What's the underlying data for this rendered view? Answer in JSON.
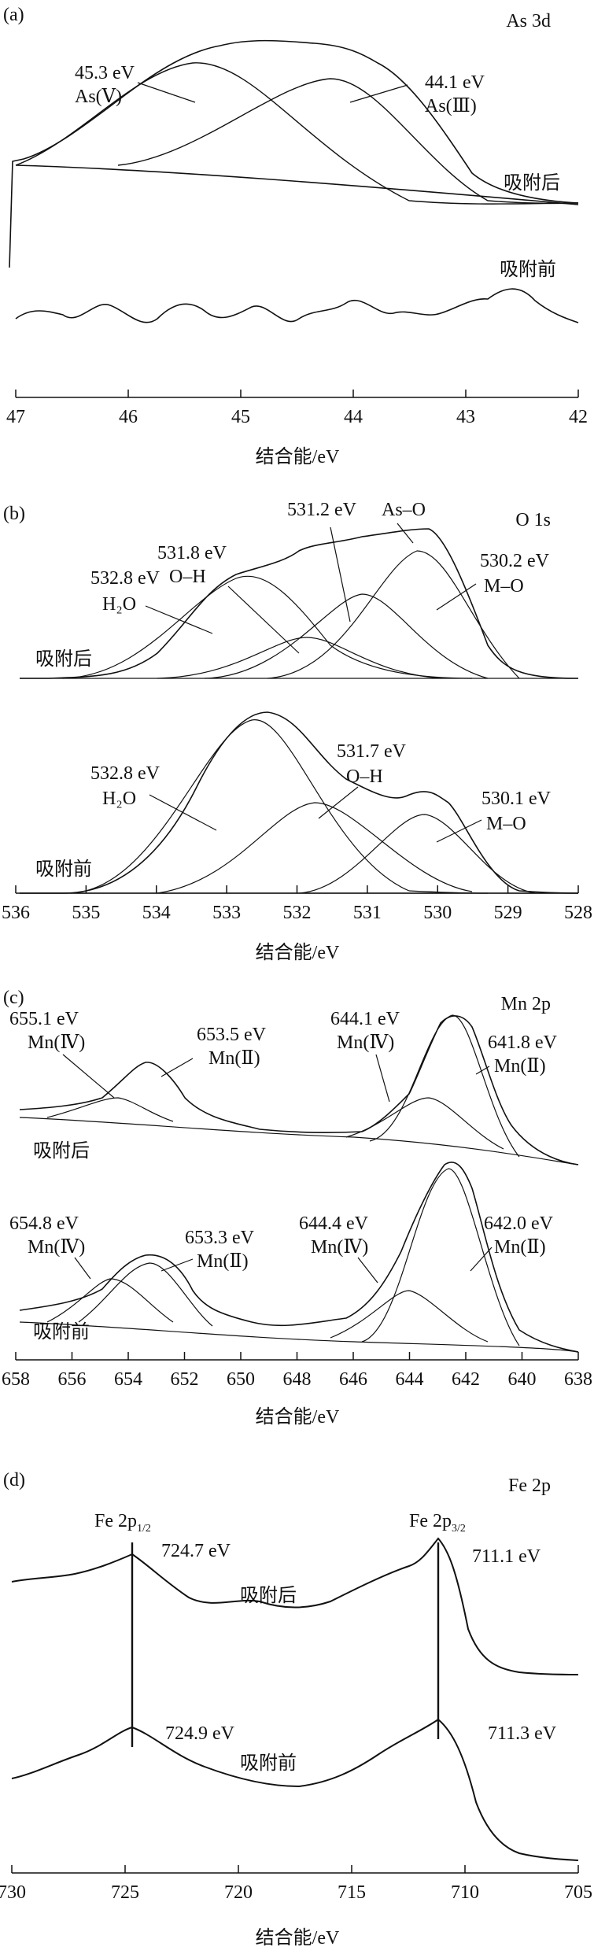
{
  "chart_data": [
    {
      "type": "line",
      "panel": "(a)",
      "title": "As 3d",
      "xlabel": "结合能/eV",
      "ylabel": "",
      "xlim": [
        47,
        42
      ],
      "xticks": [
        47,
        46,
        45,
        44,
        43,
        42
      ],
      "grid": false,
      "curve_labels": [
        "吸附后",
        "吸附前"
      ],
      "series": [
        {
          "name": "吸附后",
          "x": [
            47.0,
            46.8,
            46.6,
            46.4,
            46.2,
            46.0,
            45.8,
            45.6,
            45.4,
            45.2,
            45.0,
            44.8,
            44.6,
            44.4,
            44.2,
            44.0,
            43.8,
            43.6,
            43.4,
            43.2,
            43.0,
            42.8,
            42.6,
            42.4,
            42.2,
            42.0
          ],
          "values": [
            0.18,
            0.22,
            0.3,
            0.41,
            0.55,
            0.68,
            0.8,
            0.9,
            0.97,
            0.99,
            1.0,
            0.99,
            0.98,
            0.96,
            0.9,
            0.79,
            0.62,
            0.44,
            0.28,
            0.17,
            0.1,
            0.07,
            0.05,
            0.04,
            0.03,
            0.03
          ]
        },
        {
          "name": "As(Ⅴ) fit",
          "x": [
            47.0,
            46.6,
            46.2,
            45.8,
            45.5,
            45.3,
            45.1,
            44.8,
            44.4,
            44.0,
            43.6,
            43.2,
            42.8,
            42.4,
            42.0
          ],
          "values": [
            0.03,
            0.13,
            0.38,
            0.66,
            0.79,
            0.81,
            0.78,
            0.65,
            0.4,
            0.18,
            0.06,
            0.02,
            0.01,
            0.0,
            0.0
          ]
        },
        {
          "name": "As(Ⅲ) fit",
          "x": [
            46.4,
            46.0,
            45.6,
            45.2,
            44.8,
            44.4,
            44.1,
            43.8,
            43.4,
            43.0,
            42.6,
            42.2,
            42.0
          ],
          "values": [
            0.0,
            0.03,
            0.11,
            0.3,
            0.55,
            0.73,
            0.77,
            0.71,
            0.5,
            0.24,
            0.08,
            0.02,
            0.01
          ]
        },
        {
          "name": "吸附后 baseline",
          "x": [
            47.0,
            46.0,
            45.0,
            44.0,
            43.0,
            42.0
          ],
          "values": [
            0.12,
            0.11,
            0.09,
            0.06,
            0.03,
            0.02
          ]
        },
        {
          "name": "吸附前",
          "x": [
            47.0,
            46.6,
            46.2,
            45.8,
            45.4,
            45.0,
            44.6,
            44.2,
            43.8,
            43.4,
            43.0,
            42.6,
            42.2,
            42.0
          ],
          "values": [
            -0.45,
            -0.4,
            -0.5,
            -0.42,
            -0.47,
            -0.4,
            -0.44,
            -0.36,
            -0.43,
            -0.45,
            -0.41,
            -0.33,
            -0.4,
            -0.44
          ]
        }
      ],
      "annotations": [
        {
          "text": "45.3 eV",
          "text2": "As(Ⅴ)",
          "x": 45.3
        },
        {
          "text": "44.1 eV",
          "text2": "As(Ⅲ)",
          "x": 44.1
        }
      ]
    },
    {
      "type": "line",
      "panel": "(b)",
      "title": "O 1s",
      "xlabel": "结合能/eV",
      "ylabel": "",
      "xlim": [
        536,
        528
      ],
      "xticks": [
        536,
        535,
        534,
        533,
        532,
        531,
        530,
        529,
        528
      ],
      "grid": false,
      "curve_labels": [
        "吸附后",
        "吸附前"
      ],
      "series": [
        {
          "name": "吸附后",
          "x": [
            535.0,
            534.5,
            534.0,
            533.5,
            533.0,
            532.5,
            532.0,
            531.5,
            531.0,
            530.5,
            530.2,
            530.0,
            529.5,
            529.0,
            528.5,
            528.0
          ],
          "values": [
            0.02,
            0.08,
            0.22,
            0.42,
            0.58,
            0.64,
            0.67,
            0.7,
            0.73,
            0.77,
            0.75,
            0.66,
            0.35,
            0.1,
            0.02,
            0.01
          ]
        },
        {
          "name": "吸附前",
          "x": [
            535.0,
            534.5,
            534.0,
            533.5,
            533.0,
            532.8,
            532.5,
            532.0,
            531.5,
            531.0,
            530.5,
            530.2,
            530.0,
            529.5,
            529.0,
            528.5,
            528.0
          ],
          "values": [
            0.02,
            0.1,
            0.3,
            0.6,
            0.86,
            0.88,
            0.8,
            0.62,
            0.47,
            0.46,
            0.53,
            0.53,
            0.47,
            0.24,
            0.07,
            0.02,
            0.01
          ]
        }
      ],
      "annotations": [
        {
          "text": "531.8 eV",
          "text2": "O–H",
          "x": 531.8,
          "curve": "吸附后"
        },
        {
          "text": "531.2 eV",
          "text2": "As–O",
          "x": 531.2,
          "curve": "吸附后"
        },
        {
          "text": "532.8 eV",
          "text2": "H₂O",
          "x": 532.8,
          "curve": "吸附后"
        },
        {
          "text": "530.2 eV",
          "text2": "M–O",
          "x": 530.2,
          "curve": "吸附后"
        },
        {
          "text": "532.8 eV",
          "text2": "H₂O",
          "x": 532.8,
          "curve": "吸附前"
        },
        {
          "text": "531.7 eV",
          "text2": "O–H",
          "x": 531.7,
          "curve": "吸附前"
        },
        {
          "text": "530.1 eV",
          "text2": "M–O",
          "x": 530.1,
          "curve": "吸附前"
        }
      ]
    },
    {
      "type": "line",
      "panel": "(c)",
      "title": "Mn 2p",
      "xlabel": "结合能/eV",
      "ylabel": "",
      "xlim": [
        658,
        638
      ],
      "xticks": [
        658,
        656,
        654,
        652,
        650,
        648,
        646,
        644,
        642,
        640,
        638
      ],
      "grid": false,
      "curve_labels": [
        "吸附后",
        "吸附前"
      ],
      "series": [
        {
          "name": "吸附后",
          "x": [
            658,
            656,
            655,
            654,
            653.5,
            653,
            652,
            650,
            648,
            646,
            645,
            644,
            643,
            642.5,
            642,
            641.5,
            641,
            640,
            639,
            638
          ],
          "values": [
            0.2,
            0.25,
            0.34,
            0.5,
            0.52,
            0.45,
            0.3,
            0.22,
            0.22,
            0.28,
            0.35,
            0.45,
            0.7,
            0.9,
            1.0,
            0.92,
            0.7,
            0.3,
            0.12,
            0.08
          ]
        },
        {
          "name": "吸附前",
          "x": [
            658,
            656,
            655,
            654,
            653.5,
            653,
            652,
            650,
            648,
            646,
            645,
            644.4,
            643,
            642.5,
            642,
            641.5,
            641,
            640,
            639,
            638
          ],
          "values": [
            0.2,
            0.26,
            0.36,
            0.45,
            0.47,
            0.42,
            0.3,
            0.2,
            0.24,
            0.32,
            0.4,
            0.5,
            0.76,
            0.95,
            1.0,
            0.9,
            0.68,
            0.3,
            0.12,
            0.08
          ]
        }
      ],
      "annotations": [
        {
          "text": "655.1 eV",
          "text2": "Mn(Ⅳ)",
          "x": 655.1,
          "curve": "吸附后"
        },
        {
          "text": "653.5 eV",
          "text2": "Mn(Ⅱ)",
          "x": 653.5,
          "curve": "吸附后"
        },
        {
          "text": "644.1 eV",
          "text2": "Mn(Ⅳ)",
          "x": 644.1,
          "curve": "吸附后"
        },
        {
          "text": "641.8 eV",
          "text2": "Mn(Ⅱ)",
          "x": 641.8,
          "curve": "吸附后"
        },
        {
          "text": "654.8 eV",
          "text2": "Mn(Ⅳ)",
          "x": 654.8,
          "curve": "吸附前"
        },
        {
          "text": "653.3 eV",
          "text2": "Mn(Ⅱ)",
          "x": 653.3,
          "curve": "吸附前"
        },
        {
          "text": "644.4 eV",
          "text2": "Mn(Ⅳ)",
          "x": 644.4,
          "curve": "吸附前"
        },
        {
          "text": "642.0 eV",
          "text2": "Mn(Ⅱ)",
          "x": 642.0,
          "curve": "吸附前"
        }
      ]
    },
    {
      "type": "line",
      "panel": "(d)",
      "title": "Fe 2p",
      "xlabel": "结合能/eV",
      "ylabel": "",
      "xlim": [
        730,
        705
      ],
      "xticks": [
        730,
        725,
        720,
        715,
        710,
        705
      ],
      "grid": false,
      "curve_labels": [
        "吸附后",
        "吸附前"
      ],
      "peak_lines": [
        {
          "label": "Fe 2p",
          "sub": "1/2",
          "x": 724.8
        },
        {
          "label": "Fe 2p",
          "sub": "3/2",
          "x": 711.2
        }
      ],
      "series": [
        {
          "name": "吸附后",
          "x": [
            730,
            728,
            726,
            725,
            724.7,
            724,
            723,
            722,
            720,
            718,
            716,
            714,
            712,
            711.1,
            710.5,
            710,
            709.5,
            709,
            708,
            707,
            706,
            705
          ],
          "values": [
            0.62,
            0.66,
            0.72,
            0.76,
            0.77,
            0.72,
            0.6,
            0.55,
            0.56,
            0.55,
            0.6,
            0.67,
            0.77,
            0.8,
            0.72,
            0.6,
            0.48,
            0.4,
            0.35,
            0.33,
            0.32,
            0.32
          ]
        },
        {
          "name": "吸附前",
          "x": [
            730,
            728,
            726,
            725,
            724.9,
            724,
            722,
            720,
            718,
            716,
            714,
            712,
            711.3,
            710.5,
            710,
            709.5,
            709,
            708,
            707,
            706,
            705
          ],
          "values": [
            0.28,
            0.3,
            0.34,
            0.37,
            0.38,
            0.35,
            0.3,
            0.25,
            0.24,
            0.27,
            0.33,
            0.4,
            0.42,
            0.36,
            0.22,
            0.12,
            0.06,
            0.02,
            0.01,
            0.0,
            0.0
          ]
        }
      ],
      "annotations": [
        {
          "text": "724.7 eV",
          "x": 724.7,
          "curve": "吸附后"
        },
        {
          "text": "711.1 eV",
          "x": 711.1,
          "curve": "吸附后"
        },
        {
          "text": "724.9 eV",
          "x": 724.9,
          "curve": "吸附前"
        },
        {
          "text": "711.3 eV",
          "x": 711.3,
          "curve": "吸附前"
        }
      ]
    }
  ]
}
